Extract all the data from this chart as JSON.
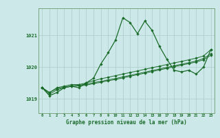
{
  "title": "Graphe pression niveau de la mer (hPa)",
  "bg_color": "#cce8e8",
  "grid_color": "#aacccc",
  "line_color": "#1a6b2a",
  "spine_color": "#6b9b6b",
  "x_labels": [
    "0",
    "1",
    "2",
    "3",
    "4",
    "5",
    "6",
    "7",
    "8",
    "9",
    "10",
    "11",
    "12",
    "13",
    "14",
    "15",
    "16",
    "17",
    "18",
    "19",
    "20",
    "21",
    "22",
    "23"
  ],
  "yticks": [
    1019,
    1020,
    1021
  ],
  "ylim": [
    1018.55,
    1021.85
  ],
  "xlim": [
    -0.5,
    23.5
  ],
  "series": [
    [
      1019.35,
      1019.1,
      1019.2,
      1019.35,
      1019.4,
      1019.35,
      1019.5,
      1019.65,
      1020.1,
      1020.45,
      1020.85,
      1021.55,
      1021.4,
      1021.05,
      1021.45,
      1021.15,
      1020.65,
      1020.25,
      1019.9,
      1019.85,
      1019.9,
      1019.78,
      1020.0,
      1020.55
    ],
    [
      1019.35,
      1019.2,
      1019.35,
      1019.4,
      1019.45,
      1019.45,
      1019.5,
      1019.57,
      1019.63,
      1019.68,
      1019.73,
      1019.78,
      1019.83,
      1019.88,
      1019.93,
      1019.98,
      1020.03,
      1020.08,
      1020.13,
      1020.18,
      1020.23,
      1020.28,
      1020.35,
      1020.55
    ],
    [
      1019.35,
      1019.2,
      1019.32,
      1019.37,
      1019.41,
      1019.43,
      1019.46,
      1019.51,
      1019.55,
      1019.6,
      1019.64,
      1019.69,
      1019.74,
      1019.79,
      1019.84,
      1019.89,
      1019.94,
      1019.99,
      1020.04,
      1020.09,
      1020.14,
      1020.19,
      1020.27,
      1020.42
    ],
    [
      1019.35,
      1019.15,
      1019.28,
      1019.36,
      1019.39,
      1019.41,
      1019.43,
      1019.48,
      1019.52,
      1019.57,
      1019.61,
      1019.66,
      1019.71,
      1019.76,
      1019.81,
      1019.86,
      1019.91,
      1019.96,
      1020.01,
      1020.06,
      1020.11,
      1020.16,
      1020.23,
      1020.37
    ]
  ]
}
